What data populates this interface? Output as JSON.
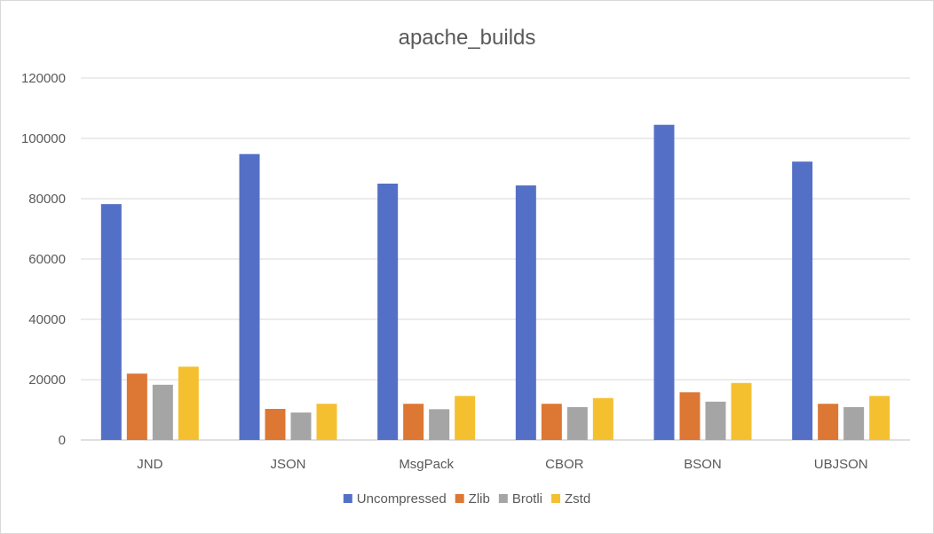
{
  "chart_data": {
    "type": "bar",
    "title": "apache_builds",
    "xlabel": "",
    "ylabel": "",
    "categories": [
      "JND",
      "JSON",
      "MsgPack",
      "CBOR",
      "BSON",
      "UBJSON"
    ],
    "series": [
      {
        "name": "Uncompressed",
        "color": "#5470c6",
        "values": [
          78200,
          94800,
          85000,
          84400,
          104500,
          92300
        ]
      },
      {
        "name": "Zlib",
        "color": "#dd7734",
        "values": [
          22000,
          10300,
          12000,
          12000,
          15800,
          12000
        ]
      },
      {
        "name": "Brotli",
        "color": "#a5a5a5",
        "values": [
          18300,
          9100,
          10200,
          10900,
          12700,
          10900
        ]
      },
      {
        "name": "Zstd",
        "color": "#f4c030",
        "values": [
          24300,
          12000,
          14600,
          13900,
          18900,
          14600
        ]
      }
    ],
    "ylim": [
      0,
      120000
    ],
    "yticks": [
      "0",
      "20000",
      "40000",
      "60000",
      "80000",
      "100000",
      "120000"
    ],
    "grid": true,
    "legend_position": "bottom"
  }
}
